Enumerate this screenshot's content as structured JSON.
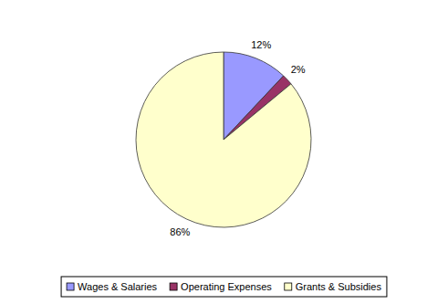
{
  "chart_data": {
    "type": "pie",
    "categories": [
      "Wages & Salaries",
      "Operating Expenses",
      "Grants & Subsidies"
    ],
    "values": [
      12,
      2,
      86
    ],
    "value_labels": [
      "12%",
      "2%",
      "86%"
    ],
    "colors": [
      "#9999ff",
      "#993366",
      "#ffffcc"
    ],
    "data_labels": true,
    "legend": "bottom"
  }
}
